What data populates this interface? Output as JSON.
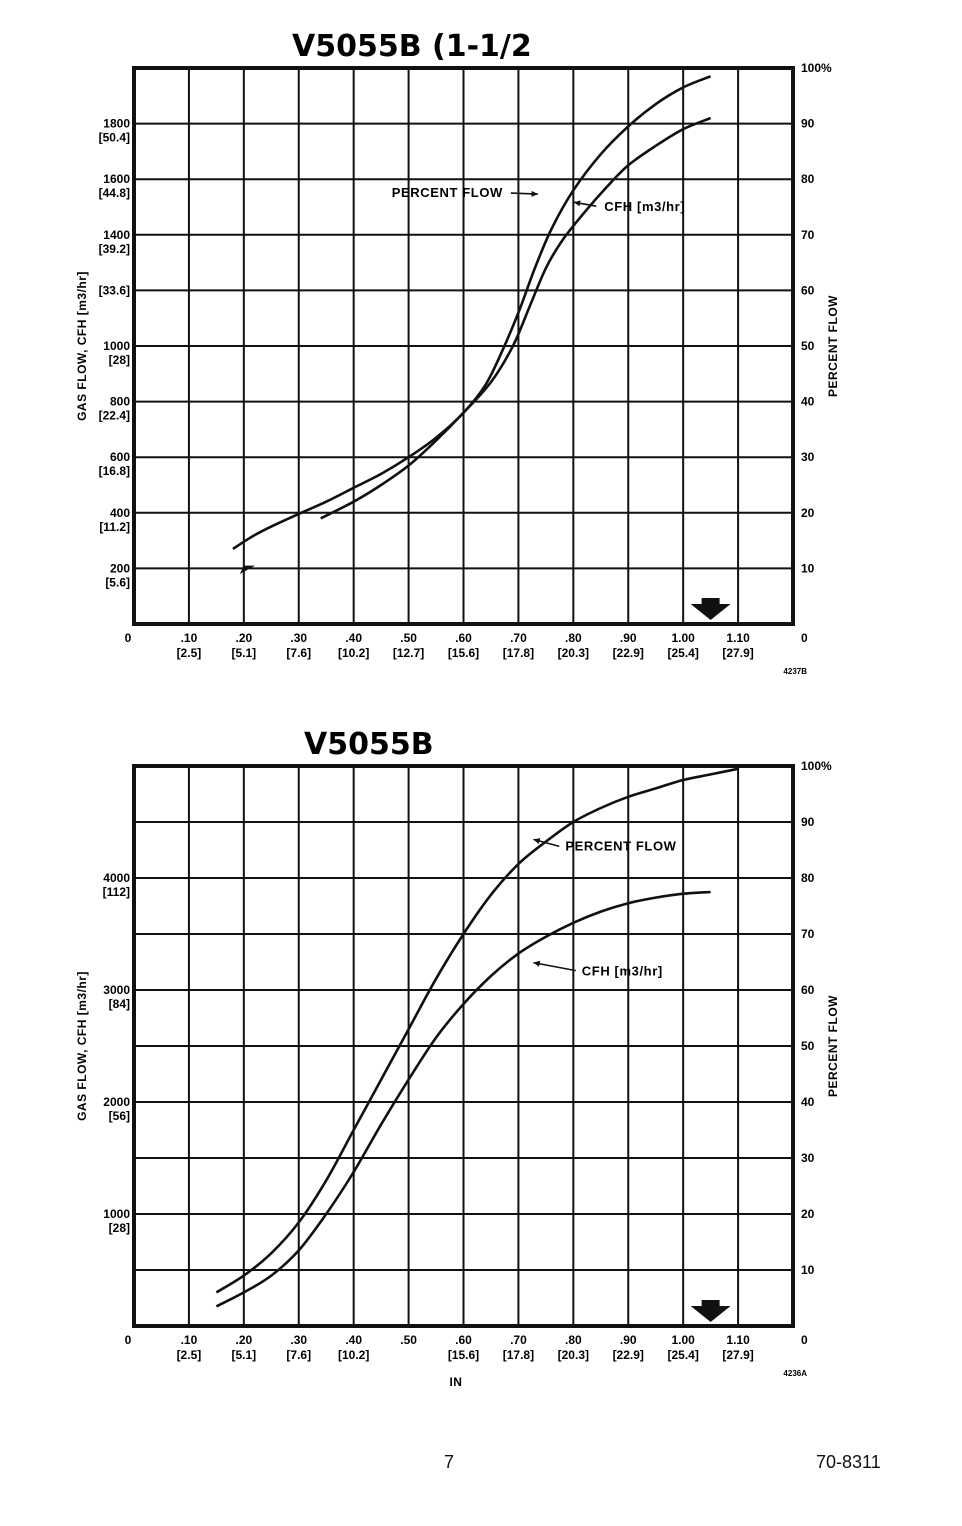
{
  "page": {
    "page_number": "7",
    "doc_number": "70-8311"
  },
  "chart_data": [
    {
      "type": "line",
      "title": "V5055B (1-1/2",
      "ylabel": "GAS FLOW, CFH [m3/hr]",
      "y2label": "PERCENT FLOW",
      "xlabel": "",
      "figure_id": "4237B",
      "xlim": [
        0,
        1.2
      ],
      "ylim": [
        0,
        2000
      ],
      "y2lim": [
        0,
        100
      ],
      "grid": true,
      "x_ticks": [
        {
          "v": 0,
          "top": "0",
          "bot": ""
        },
        {
          "v": 0.1,
          "top": ".10",
          "bot": "[2.5]"
        },
        {
          "v": 0.2,
          "top": ".20",
          "bot": "[5.1]"
        },
        {
          "v": 0.3,
          "top": ".30",
          "bot": "[7.6]"
        },
        {
          "v": 0.4,
          "top": ".40",
          "bot": "[10.2]"
        },
        {
          "v": 0.5,
          "top": ".50",
          "bot": "[12.7]"
        },
        {
          "v": 0.6,
          "top": ".60",
          "bot": "[15.6]"
        },
        {
          "v": 0.7,
          "top": ".70",
          "bot": "[17.8]"
        },
        {
          "v": 0.8,
          "top": ".80",
          "bot": "[20.3]"
        },
        {
          "v": 0.9,
          "top": ".90",
          "bot": "[22.9]"
        },
        {
          "v": 1.0,
          "top": "1.00",
          "bot": "[25.4]"
        },
        {
          "v": 1.1,
          "top": "1.10",
          "bot": "[27.9]"
        }
      ],
      "y_ticks": [
        {
          "v": 0,
          "top": "0",
          "bot": ""
        },
        {
          "v": 200,
          "top": "200",
          "bot": "[5.6]"
        },
        {
          "v": 400,
          "top": "400",
          "bot": "[11.2]"
        },
        {
          "v": 600,
          "top": "600",
          "bot": "[16.8]"
        },
        {
          "v": 800,
          "top": "800",
          "bot": "[22.4]"
        },
        {
          "v": 1000,
          "top": "1000",
          "bot": "[28]"
        },
        {
          "v": 1200,
          "top": "",
          "bot": "[33.6]"
        },
        {
          "v": 1400,
          "top": "1400",
          "bot": "[39.2]"
        },
        {
          "v": 1600,
          "top": "1600",
          "bot": "[44.8]"
        },
        {
          "v": 1800,
          "top": "1800",
          "bot": "[50.4]"
        }
      ],
      "y2_ticks": [
        {
          "v": 0,
          "label": "0"
        },
        {
          "v": 10,
          "label": "10"
        },
        {
          "v": 20,
          "label": "20"
        },
        {
          "v": 30,
          "label": "30"
        },
        {
          "v": 40,
          "label": "40"
        },
        {
          "v": 50,
          "label": "50"
        },
        {
          "v": 60,
          "label": "60"
        },
        {
          "v": 70,
          "label": "70"
        },
        {
          "v": 80,
          "label": "80"
        },
        {
          "v": 90,
          "label": "90"
        },
        {
          "v": 100,
          "label": "100%"
        }
      ],
      "series": [
        {
          "name": "PERCENT FLOW",
          "axis": "y2",
          "x": [
            0.18,
            0.22,
            0.26,
            0.3,
            0.35,
            0.4,
            0.45,
            0.5,
            0.55,
            0.6,
            0.64,
            0.67,
            0.7,
            0.73,
            0.76,
            0.8,
            0.85,
            0.9,
            0.95,
            1.0,
            1.05
          ],
          "y": [
            13.5,
            16.0,
            18.0,
            19.8,
            22.0,
            24.5,
            27.0,
            30.0,
            33.5,
            38.0,
            43.0,
            49.0,
            56.0,
            64.0,
            71.0,
            78.0,
            84.5,
            89.5,
            93.5,
            96.5,
            98.5
          ]
        },
        {
          "name": "CFH [m3/hr]",
          "axis": "y2",
          "x": [
            0.34,
            0.4,
            0.45,
            0.5,
            0.55,
            0.6,
            0.65,
            0.69,
            0.72,
            0.75,
            0.78,
            0.82,
            0.86,
            0.9,
            0.95,
            1.0,
            1.05
          ],
          "y": [
            19.0,
            22.0,
            25.0,
            28.5,
            33.0,
            38.0,
            43.5,
            50.0,
            57.0,
            64.0,
            69.0,
            74.0,
            78.5,
            82.5,
            86.0,
            89.0,
            91.0
          ]
        }
      ],
      "annotations": [
        {
          "text": "PERCENT FLOW",
          "series": 0,
          "x": 0.75,
          "y": 77.5
        },
        {
          "text": "CFH [m3/hr]",
          "series": 1,
          "x": 0.79,
          "y": 75.5
        }
      ],
      "marker": {
        "type": "arrow-down",
        "x": 1.05
      }
    },
    {
      "type": "line",
      "title": "V5055B",
      "ylabel": "GAS FLOW, CFH [m3/hr]",
      "y2label": "PERCENT FLOW",
      "xlabel": "IN",
      "figure_id": "4236A",
      "xlim": [
        0,
        1.2
      ],
      "ylim": [
        0,
        5000
      ],
      "y2lim": [
        0,
        100
      ],
      "grid": true,
      "x_ticks": [
        {
          "v": 0,
          "top": "0",
          "bot": ""
        },
        {
          "v": 0.1,
          "top": ".10",
          "bot": "[2.5]"
        },
        {
          "v": 0.2,
          "top": ".20",
          "bot": "[5.1]"
        },
        {
          "v": 0.3,
          "top": ".30",
          "bot": "[7.6]"
        },
        {
          "v": 0.4,
          "top": ".40",
          "bot": "[10.2]"
        },
        {
          "v": 0.5,
          "top": ".50",
          "bot": ""
        },
        {
          "v": 0.6,
          "top": ".60",
          "bot": "[15.6]"
        },
        {
          "v": 0.7,
          "top": ".70",
          "bot": "[17.8]"
        },
        {
          "v": 0.8,
          "top": ".80",
          "bot": "[20.3]"
        },
        {
          "v": 0.9,
          "top": ".90",
          "bot": "[22.9]"
        },
        {
          "v": 1.0,
          "top": "1.00",
          "bot": "[25.4]"
        },
        {
          "v": 1.1,
          "top": "1.10",
          "bot": "[27.9]"
        }
      ],
      "y_ticks": [
        {
          "v": 1000,
          "top": "1000",
          "bot": "[28]"
        },
        {
          "v": 2000,
          "top": "2000",
          "bot": "[56]"
        },
        {
          "v": 3000,
          "top": "3000",
          "bot": "[84]"
        },
        {
          "v": 4000,
          "top": "4000",
          "bot": "[112]"
        }
      ],
      "y2_ticks": [
        {
          "v": 0,
          "label": "0"
        },
        {
          "v": 10,
          "label": "10"
        },
        {
          "v": 20,
          "label": "20"
        },
        {
          "v": 30,
          "label": "30"
        },
        {
          "v": 40,
          "label": "40"
        },
        {
          "v": 50,
          "label": "50"
        },
        {
          "v": 60,
          "label": "60"
        },
        {
          "v": 70,
          "label": "70"
        },
        {
          "v": 80,
          "label": "80"
        },
        {
          "v": 90,
          "label": "90"
        },
        {
          "v": 100,
          "label": "100%"
        }
      ],
      "series": [
        {
          "name": "PERCENT FLOW",
          "axis": "y2",
          "x": [
            0.15,
            0.2,
            0.25,
            0.3,
            0.35,
            0.4,
            0.45,
            0.5,
            0.55,
            0.6,
            0.65,
            0.7,
            0.75,
            0.8,
            0.85,
            0.9,
            0.95,
            1.0,
            1.05,
            1.1
          ],
          "y": [
            6.0,
            9.0,
            13.0,
            18.5,
            26.0,
            35.0,
            44.0,
            53.0,
            62.0,
            70.0,
            77.0,
            82.5,
            86.5,
            90.0,
            92.5,
            94.5,
            96.0,
            97.5,
            98.5,
            99.5
          ]
        },
        {
          "name": "CFH [m3/hr]",
          "axis": "y2",
          "x": [
            0.15,
            0.2,
            0.25,
            0.3,
            0.35,
            0.4,
            0.45,
            0.5,
            0.55,
            0.6,
            0.65,
            0.7,
            0.75,
            0.8,
            0.85,
            0.9,
            0.95,
            1.0,
            1.05
          ],
          "y": [
            3.5,
            6.0,
            9.0,
            13.5,
            20.0,
            27.5,
            36.0,
            44.0,
            51.5,
            57.5,
            62.5,
            66.5,
            69.5,
            72.0,
            74.0,
            75.5,
            76.5,
            77.2,
            77.5
          ]
        }
      ],
      "annotations": [
        {
          "text": "PERCENT FLOW",
          "series": 0,
          "x": 0.72,
          "y": 86
        },
        {
          "text": "CFH [m3/hr]",
          "series": 1,
          "x": 0.72,
          "y": 64
        }
      ],
      "marker": {
        "type": "arrow-down",
        "x": 1.05
      }
    }
  ]
}
